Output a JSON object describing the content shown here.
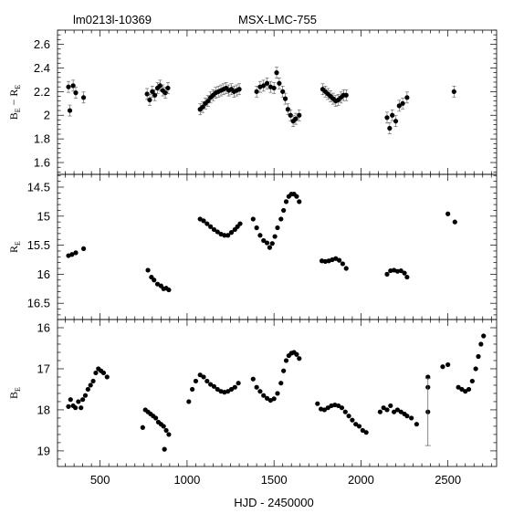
{
  "header": {
    "field_id": "lm0213l-10369",
    "object_name": "MSX-LMC-755"
  },
  "chart_data": {
    "type": "scatter",
    "xlabel": "HJD - 2450000",
    "xlim": [
      255,
      2780
    ],
    "xticks": [
      500,
      1000,
      1500,
      2000,
      2500
    ],
    "xtick_labels": [
      "500",
      "1000",
      "1500",
      "2000",
      "2500"
    ],
    "panels": [
      {
        "name": "color",
        "ylabel_main": "B",
        "ylabel_sub1": "E",
        "ylabel_mid": " − R",
        "ylabel_sub2": "E",
        "ylim": [
          1.5,
          2.72
        ],
        "inverted": false,
        "yticks": [
          1.6,
          1.8,
          2,
          2.2,
          2.4,
          2.6
        ],
        "ytick_labels": [
          "1.6",
          "1.8",
          "2",
          "2.2",
          "2.4",
          "2.6"
        ],
        "error_bars": true,
        "points": [
          [
            318,
            2.24
          ],
          [
            326,
            2.04
          ],
          [
            345,
            2.25
          ],
          [
            360,
            2.19
          ],
          [
            405,
            2.15
          ],
          [
            770,
            2.18
          ],
          [
            785,
            2.13
          ],
          [
            800,
            2.2
          ],
          [
            815,
            2.17
          ],
          [
            830,
            2.23
          ],
          [
            845,
            2.25
          ],
          [
            860,
            2.21
          ],
          [
            875,
            2.19
          ],
          [
            890,
            2.23
          ],
          [
            1075,
            2.05
          ],
          [
            1090,
            2.07
          ],
          [
            1105,
            2.1
          ],
          [
            1120,
            2.12
          ],
          [
            1135,
            2.15
          ],
          [
            1150,
            2.17
          ],
          [
            1165,
            2.19
          ],
          [
            1180,
            2.2
          ],
          [
            1195,
            2.21
          ],
          [
            1210,
            2.22
          ],
          [
            1225,
            2.23
          ],
          [
            1240,
            2.21
          ],
          [
            1255,
            2.22
          ],
          [
            1270,
            2.2
          ],
          [
            1285,
            2.21
          ],
          [
            1300,
            2.22
          ],
          [
            1400,
            2.2
          ],
          [
            1420,
            2.24
          ],
          [
            1440,
            2.25
          ],
          [
            1460,
            2.27
          ],
          [
            1480,
            2.24
          ],
          [
            1500,
            2.23
          ],
          [
            1515,
            2.36
          ],
          [
            1530,
            2.27
          ],
          [
            1550,
            2.2
          ],
          [
            1565,
            2.14
          ],
          [
            1580,
            2.05
          ],
          [
            1595,
            2.0
          ],
          [
            1610,
            1.95
          ],
          [
            1625,
            1.97
          ],
          [
            1645,
            2.0
          ],
          [
            1780,
            2.22
          ],
          [
            1795,
            2.2
          ],
          [
            1810,
            2.18
          ],
          [
            1825,
            2.16
          ],
          [
            1840,
            2.14
          ],
          [
            1855,
            2.12
          ],
          [
            1870,
            2.13
          ],
          [
            1885,
            2.15
          ],
          [
            1900,
            2.17
          ],
          [
            1915,
            2.17
          ],
          [
            2150,
            1.98
          ],
          [
            2165,
            1.89
          ],
          [
            2180,
            2.0
          ],
          [
            2200,
            1.95
          ],
          [
            2220,
            2.08
          ],
          [
            2240,
            2.1
          ],
          [
            2265,
            2.15
          ],
          [
            2535,
            2.2
          ]
        ]
      },
      {
        "name": "red",
        "ylabel_main": "R",
        "ylabel_sub1": "E",
        "ylabel_mid": "",
        "ylabel_sub2": "",
        "ylim": [
          14.28,
          16.78
        ],
        "inverted": true,
        "yticks": [
          14.5,
          15,
          15.5,
          16,
          16.5
        ],
        "ytick_labels": [
          "14.5",
          "15",
          "15.5",
          "16",
          "16.5"
        ],
        "error_bars": false,
        "points": [
          [
            318,
            15.68
          ],
          [
            338,
            15.66
          ],
          [
            360,
            15.63
          ],
          [
            405,
            15.56
          ],
          [
            775,
            15.93
          ],
          [
            795,
            16.05
          ],
          [
            810,
            16.1
          ],
          [
            830,
            16.17
          ],
          [
            850,
            16.2
          ],
          [
            865,
            16.25
          ],
          [
            880,
            16.24
          ],
          [
            895,
            16.27
          ],
          [
            1075,
            15.05
          ],
          [
            1095,
            15.08
          ],
          [
            1115,
            15.13
          ],
          [
            1135,
            15.18
          ],
          [
            1155,
            15.23
          ],
          [
            1175,
            15.27
          ],
          [
            1195,
            15.31
          ],
          [
            1215,
            15.33
          ],
          [
            1235,
            15.33
          ],
          [
            1255,
            15.28
          ],
          [
            1275,
            15.23
          ],
          [
            1290,
            15.18
          ],
          [
            1305,
            15.13
          ],
          [
            1380,
            15.05
          ],
          [
            1400,
            15.2
          ],
          [
            1420,
            15.33
          ],
          [
            1440,
            15.42
          ],
          [
            1460,
            15.46
          ],
          [
            1475,
            15.54
          ],
          [
            1490,
            15.47
          ],
          [
            1505,
            15.35
          ],
          [
            1520,
            15.2
          ],
          [
            1540,
            15.05
          ],
          [
            1555,
            14.9
          ],
          [
            1570,
            14.75
          ],
          [
            1585,
            14.66
          ],
          [
            1600,
            14.62
          ],
          [
            1615,
            14.62
          ],
          [
            1630,
            14.66
          ],
          [
            1645,
            14.75
          ],
          [
            1775,
            15.77
          ],
          [
            1795,
            15.78
          ],
          [
            1815,
            15.77
          ],
          [
            1835,
            15.75
          ],
          [
            1855,
            15.73
          ],
          [
            1875,
            15.76
          ],
          [
            1895,
            15.82
          ],
          [
            1915,
            15.9
          ],
          [
            2150,
            16.0
          ],
          [
            2170,
            15.94
          ],
          [
            2190,
            15.93
          ],
          [
            2210,
            15.95
          ],
          [
            2230,
            15.94
          ],
          [
            2250,
            15.98
          ],
          [
            2265,
            16.05
          ],
          [
            2500,
            14.96
          ],
          [
            2540,
            15.1
          ]
        ]
      },
      {
        "name": "blue",
        "ylabel_main": "B",
        "ylabel_sub1": "E",
        "ylabel_mid": "",
        "ylabel_sub2": "",
        "ylim": [
          15.8,
          19.38
        ],
        "inverted": true,
        "yticks": [
          16,
          17,
          18,
          19
        ],
        "ytick_labels": [
          "16",
          "17",
          "18",
          "19"
        ],
        "error_bars": false,
        "points": [
          [
            318,
            17.92
          ],
          [
            330,
            17.75
          ],
          [
            345,
            17.9
          ],
          [
            358,
            17.95
          ],
          [
            375,
            17.8
          ],
          [
            390,
            17.95
          ],
          [
            400,
            17.75
          ],
          [
            415,
            17.65
          ],
          [
            430,
            17.5
          ],
          [
            445,
            17.4
          ],
          [
            460,
            17.3
          ],
          [
            475,
            17.1
          ],
          [
            490,
            17.0
          ],
          [
            505,
            17.05
          ],
          [
            520,
            17.1
          ],
          [
            540,
            17.2
          ],
          [
            745,
            18.43
          ],
          [
            760,
            18.0
          ],
          [
            775,
            18.05
          ],
          [
            790,
            18.1
          ],
          [
            805,
            18.15
          ],
          [
            820,
            18.2
          ],
          [
            835,
            18.3
          ],
          [
            850,
            18.35
          ],
          [
            865,
            18.4
          ],
          [
            870,
            18.96
          ],
          [
            880,
            18.5
          ],
          [
            895,
            18.6
          ],
          [
            1010,
            17.8
          ],
          [
            1030,
            17.5
          ],
          [
            1050,
            17.3
          ],
          [
            1075,
            17.15
          ],
          [
            1095,
            17.2
          ],
          [
            1115,
            17.3
          ],
          [
            1135,
            17.38
          ],
          [
            1155,
            17.43
          ],
          [
            1175,
            17.5
          ],
          [
            1195,
            17.55
          ],
          [
            1215,
            17.57
          ],
          [
            1235,
            17.55
          ],
          [
            1255,
            17.5
          ],
          [
            1275,
            17.45
          ],
          [
            1295,
            17.35
          ],
          [
            1380,
            17.25
          ],
          [
            1400,
            17.45
          ],
          [
            1420,
            17.55
          ],
          [
            1440,
            17.65
          ],
          [
            1460,
            17.72
          ],
          [
            1480,
            17.77
          ],
          [
            1500,
            17.73
          ],
          [
            1520,
            17.6
          ],
          [
            1540,
            17.35
          ],
          [
            1555,
            17.05
          ],
          [
            1570,
            16.8
          ],
          [
            1585,
            16.68
          ],
          [
            1600,
            16.62
          ],
          [
            1615,
            16.6
          ],
          [
            1630,
            16.65
          ],
          [
            1645,
            16.75
          ],
          [
            1750,
            17.85
          ],
          [
            1770,
            17.98
          ],
          [
            1790,
            18.0
          ],
          [
            1810,
            17.95
          ],
          [
            1830,
            17.9
          ],
          [
            1850,
            17.88
          ],
          [
            1870,
            17.9
          ],
          [
            1890,
            17.95
          ],
          [
            1910,
            18.05
          ],
          [
            1930,
            18.15
          ],
          [
            1950,
            18.25
          ],
          [
            1970,
            18.35
          ],
          [
            1990,
            18.4
          ],
          [
            2010,
            18.5
          ],
          [
            2030,
            18.55
          ],
          [
            2110,
            18.05
          ],
          [
            2130,
            17.95
          ],
          [
            2150,
            18.0
          ],
          [
            2170,
            17.9
          ],
          [
            2190,
            18.05
          ],
          [
            2210,
            18.0
          ],
          [
            2230,
            18.05
          ],
          [
            2250,
            18.1
          ],
          [
            2265,
            18.15
          ],
          [
            2290,
            18.2
          ],
          [
            2320,
            18.35
          ],
          [
            2385,
            17.2
          ],
          [
            2385,
            17.45
          ],
          [
            2385,
            18.05
          ],
          [
            2470,
            16.95
          ],
          [
            2500,
            16.9
          ],
          [
            2560,
            17.45
          ],
          [
            2580,
            17.5
          ],
          [
            2600,
            17.55
          ],
          [
            2620,
            17.5
          ],
          [
            2640,
            17.3
          ],
          [
            2660,
            17.0
          ],
          [
            2675,
            16.7
          ],
          [
            2690,
            16.4
          ],
          [
            2705,
            16.2
          ]
        ],
        "errorbar_points": [
          [
            2385,
            18.05,
            0.82
          ]
        ]
      }
    ]
  }
}
